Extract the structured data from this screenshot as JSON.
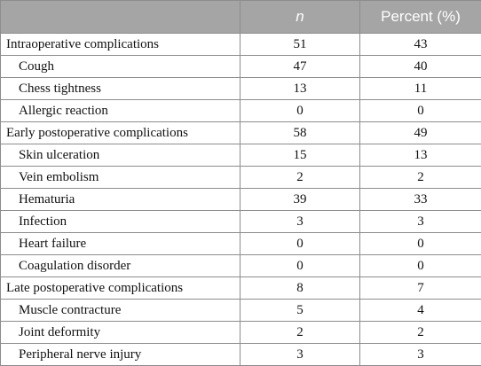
{
  "table": {
    "header": [
      "n",
      "Percent (%)"
    ],
    "groups": [
      {
        "label": "Intraoperative complications",
        "n": 51,
        "percent": 43,
        "items": [
          {
            "label": "Cough",
            "n": 47,
            "percent": 40
          },
          {
            "label": "Chess tightness",
            "n": 13,
            "percent": 11
          },
          {
            "label": "Allergic reaction",
            "n": 0,
            "percent": 0
          }
        ]
      },
      {
        "label": "Early postoperative complications",
        "n": 58,
        "percent": 49,
        "items": [
          {
            "label": "Skin ulceration",
            "n": 15,
            "percent": 13
          },
          {
            "label": "Vein embolism",
            "n": 2,
            "percent": 2
          },
          {
            "label": "Hematuria",
            "n": 39,
            "percent": 33
          },
          {
            "label": "Infection",
            "n": 3,
            "percent": 3
          },
          {
            "label": "Heart failure",
            "n": 0,
            "percent": 0
          },
          {
            "label": "Coagulation disorder",
            "n": 0,
            "percent": 0
          }
        ]
      },
      {
        "label": "Late postoperative complications",
        "n": 8,
        "percent": 7,
        "items": [
          {
            "label": "Muscle contracture",
            "n": 5,
            "percent": 4
          },
          {
            "label": "Joint deformity",
            "n": 2,
            "percent": 2
          },
          {
            "label": "Peripheral nerve injury",
            "n": 3,
            "percent": 3
          }
        ]
      }
    ]
  }
}
